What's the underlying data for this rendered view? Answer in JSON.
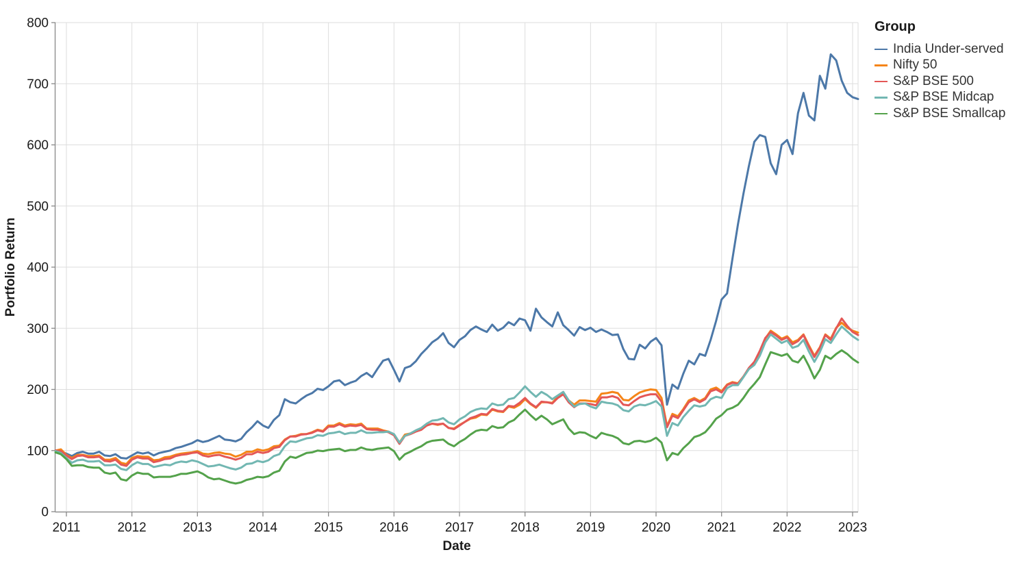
{
  "chart_data": {
    "type": "line",
    "xlabel": "Date",
    "ylabel": "Portfolio Return",
    "legend_title": "Group",
    "legend_position": "right",
    "grid": true,
    "background": "#ffffff",
    "grid_color": "#dddddd",
    "axis_color": "#888888",
    "label_color": "#1a1a1a",
    "ylim": [
      0,
      800
    ],
    "y_tick_labels": [
      "0",
      "100",
      "200",
      "300",
      "400",
      "500",
      "600",
      "700",
      "800"
    ],
    "x_tick_labels": [
      "2011",
      "2012",
      "2013",
      "2014",
      "2015",
      "2016",
      "2017",
      "2018",
      "2019",
      "2020",
      "2021",
      "2022",
      "2023"
    ],
    "x_start": "2010-11",
    "x_frequency": "monthly",
    "series": [
      {
        "name": "India Under-served",
        "color": "#4c78a8",
        "values": [
          100,
          98,
          95,
          91,
          96,
          98,
          95,
          95,
          98,
          92,
          91,
          94,
          88,
          87,
          92,
          97,
          95,
          97,
          92,
          96,
          98,
          100,
          104,
          106,
          109,
          112,
          117,
          114,
          116,
          120,
          124,
          118,
          117,
          115,
          119,
          130,
          138,
          148,
          141,
          137,
          150,
          158,
          184,
          179,
          177,
          184,
          190,
          194,
          201,
          199,
          205,
          213,
          215,
          207,
          211,
          214,
          222,
          227,
          220,
          234,
          247,
          250,
          232,
          213,
          235,
          238,
          246,
          258,
          267,
          277,
          283,
          292,
          276,
          269,
          281,
          287,
          297,
          303,
          298,
          294,
          306,
          296,
          301,
          310,
          305,
          316,
          313,
          296,
          332,
          318,
          310,
          303,
          326,
          305,
          297,
          288,
          302,
          297,
          301,
          294,
          298,
          294,
          289,
          290,
          266,
          250,
          249,
          273,
          267,
          278,
          284,
          272,
          175,
          208,
          201,
          226,
          247,
          241,
          258,
          255,
          281,
          312,
          347,
          357,
          414,
          470,
          520,
          565,
          605,
          616,
          613,
          570,
          552,
          600,
          608,
          585,
          652,
          685,
          648,
          640,
          713,
          692,
          748,
          738,
          705,
          685,
          678,
          675
        ]
      },
      {
        "name": "Nifty 50",
        "color": "#f58518",
        "values": [
          100,
          102,
          93,
          88,
          93,
          93,
          91,
          91,
          92,
          85,
          85,
          88,
          80,
          78,
          88,
          91,
          90,
          90,
          84,
          85,
          89,
          90,
          93,
          95,
          96,
          97,
          99,
          95,
          94,
          96,
          97,
          95,
          94,
          90,
          93,
          98,
          98,
          102,
          100,
          102,
          107,
          108,
          118,
          123,
          124,
          127,
          127,
          130,
          134,
          132,
          141,
          141,
          145,
          141,
          143,
          142,
          144,
          136,
          136,
          136,
          133,
          131,
          126,
          113,
          126,
          128,
          132,
          135,
          141,
          144,
          142,
          144,
          137,
          136,
          142,
          147,
          152,
          154,
          159,
          158,
          167,
          164,
          163,
          172,
          170,
          175,
          184,
          176,
          170,
          179,
          179,
          178,
          188,
          194,
          182,
          175,
          182,
          182,
          181,
          180,
          193,
          194,
          196,
          194,
          183,
          182,
          189,
          195,
          198,
          200,
          199,
          186,
          140,
          160,
          156,
          168,
          182,
          186,
          181,
          186,
          200,
          203,
          197,
          208,
          212,
          210,
          221,
          234,
          243,
          261,
          283,
          296,
          290,
          283,
          287,
          277,
          281,
          290,
          272,
          255,
          269,
          290,
          283,
          301,
          309,
          301,
          296,
          293
        ]
      },
      {
        "name": "S&P BSE 500",
        "color": "#e45756",
        "values": [
          100,
          99,
          92,
          86,
          91,
          92,
          89,
          89,
          90,
          83,
          82,
          85,
          77,
          75,
          85,
          89,
          87,
          87,
          81,
          83,
          86,
          87,
          91,
          93,
          94,
          96,
          97,
          92,
          90,
          92,
          93,
          90,
          88,
          85,
          88,
          94,
          94,
          98,
          96,
          98,
          104,
          106,
          117,
          123,
          123,
          126,
          127,
          129,
          133,
          131,
          139,
          139,
          143,
          139,
          141,
          140,
          142,
          135,
          134,
          134,
          132,
          130,
          125,
          111,
          124,
          127,
          131,
          134,
          141,
          144,
          143,
          144,
          137,
          135,
          141,
          147,
          153,
          156,
          160,
          159,
          168,
          165,
          164,
          173,
          172,
          178,
          186,
          177,
          171,
          180,
          179,
          177,
          186,
          192,
          179,
          171,
          177,
          177,
          176,
          174,
          187,
          187,
          189,
          186,
          175,
          174,
          181,
          187,
          190,
          192,
          192,
          180,
          138,
          157,
          153,
          166,
          179,
          184,
          179,
          184,
          197,
          200,
          195,
          207,
          211,
          209,
          221,
          235,
          245,
          263,
          284,
          294,
          288,
          281,
          285,
          274,
          279,
          289,
          270,
          253,
          268,
          289,
          281,
          300,
          316,
          304,
          294,
          289
        ]
      },
      {
        "name": "S&P BSE Midcap",
        "color": "#72b7b2",
        "values": [
          99,
          96,
          88,
          80,
          84,
          85,
          82,
          82,
          83,
          76,
          76,
          77,
          70,
          68,
          76,
          81,
          78,
          78,
          73,
          75,
          77,
          76,
          80,
          82,
          81,
          84,
          82,
          78,
          74,
          75,
          77,
          74,
          71,
          69,
          72,
          78,
          79,
          83,
          81,
          84,
          91,
          94,
          107,
          115,
          114,
          117,
          120,
          121,
          125,
          124,
          128,
          129,
          131,
          127,
          129,
          129,
          133,
          129,
          129,
          130,
          130,
          131,
          127,
          113,
          124,
          128,
          133,
          137,
          144,
          149,
          150,
          153,
          146,
          143,
          151,
          156,
          163,
          167,
          169,
          168,
          177,
          174,
          175,
          184,
          186,
          195,
          205,
          196,
          188,
          196,
          191,
          184,
          190,
          196,
          182,
          172,
          176,
          177,
          172,
          169,
          180,
          178,
          177,
          174,
          166,
          164,
          172,
          175,
          174,
          177,
          181,
          172,
          124,
          145,
          141,
          155,
          165,
          174,
          172,
          174,
          184,
          188,
          186,
          202,
          207,
          207,
          220,
          233,
          240,
          255,
          277,
          290,
          283,
          276,
          280,
          268,
          271,
          281,
          262,
          245,
          261,
          282,
          276,
          290,
          303,
          295,
          287,
          281
        ]
      },
      {
        "name": "S&P BSE Smallcap",
        "color": "#54a24b",
        "values": [
          97,
          94,
          86,
          75,
          76,
          76,
          73,
          72,
          72,
          64,
          62,
          64,
          53,
          51,
          59,
          64,
          62,
          62,
          56,
          57,
          57,
          57,
          59,
          62,
          62,
          64,
          66,
          62,
          56,
          53,
          54,
          51,
          48,
          46,
          48,
          52,
          54,
          57,
          56,
          58,
          64,
          67,
          82,
          90,
          88,
          92,
          96,
          97,
          100,
          99,
          101,
          102,
          103,
          99,
          101,
          101,
          105,
          102,
          101,
          103,
          104,
          105,
          99,
          85,
          94,
          98,
          103,
          107,
          113,
          116,
          117,
          118,
          111,
          107,
          114,
          119,
          126,
          132,
          134,
          133,
          140,
          137,
          138,
          146,
          150,
          159,
          167,
          158,
          150,
          157,
          151,
          143,
          147,
          151,
          136,
          127,
          130,
          129,
          124,
          120,
          129,
          126,
          124,
          120,
          112,
          110,
          115,
          116,
          114,
          116,
          121,
          113,
          84,
          96,
          93,
          104,
          112,
          122,
          125,
          130,
          140,
          152,
          158,
          167,
          170,
          175,
          186,
          199,
          209,
          220,
          241,
          261,
          258,
          255,
          258,
          247,
          244,
          255,
          238,
          218,
          232,
          255,
          250,
          258,
          264,
          258,
          250,
          244
        ]
      }
    ]
  }
}
